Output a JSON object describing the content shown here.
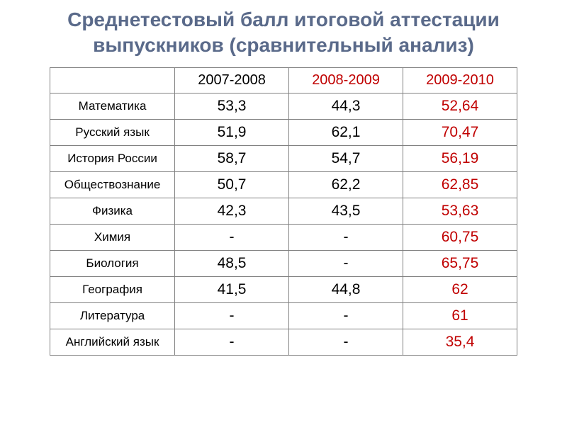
{
  "title": "Среднетестовый балл итоговой аттестации выпускников (сравнительный анализ)",
  "table": {
    "columns": [
      {
        "label": "",
        "highlight": false
      },
      {
        "label": "2007-2008",
        "highlight": false
      },
      {
        "label": "2008-2009",
        "highlight": true
      },
      {
        "label": "2009-2010",
        "highlight": true
      }
    ],
    "rows": [
      {
        "subject": "Математика",
        "values": [
          "53,3",
          "44,3",
          "52,64"
        ],
        "highlight_col": 2
      },
      {
        "subject": "Русский язык",
        "values": [
          "51,9",
          "62,1",
          "70,47"
        ],
        "highlight_col": 2
      },
      {
        "subject": "История России",
        "values": [
          "58,7",
          "54,7",
          "56,19"
        ],
        "highlight_col": 2
      },
      {
        "subject": "Обществознание",
        "values": [
          "50,7",
          "62,2",
          "62,85"
        ],
        "highlight_col": 2
      },
      {
        "subject": "Физика",
        "values": [
          "42,3",
          "43,5",
          "53,63"
        ],
        "highlight_col": 2
      },
      {
        "subject": "Химия",
        "values": [
          "-",
          "-",
          "60,75"
        ],
        "highlight_col": 2
      },
      {
        "subject": "Биология",
        "values": [
          "48,5",
          "-",
          "65,75"
        ],
        "highlight_col": 2
      },
      {
        "subject": "География",
        "values": [
          "41,5",
          "44,8",
          "62"
        ],
        "highlight_col": 2
      },
      {
        "subject": "Литература",
        "values": [
          "-",
          "-",
          "61"
        ],
        "highlight_col": 2
      },
      {
        "subject": "Английский язык",
        "values": [
          "-",
          "-",
          "35,4"
        ],
        "highlight_col": 2
      }
    ]
  },
  "colors": {
    "title_color": "#5a6a8a",
    "text_color": "#000000",
    "highlight_color": "#c00000",
    "border_color": "#808080",
    "background_color": "#ffffff"
  },
  "typography": {
    "title_fontsize": 28,
    "header_fontsize": 20,
    "subject_fontsize": 17,
    "value_fontsize": 21
  }
}
